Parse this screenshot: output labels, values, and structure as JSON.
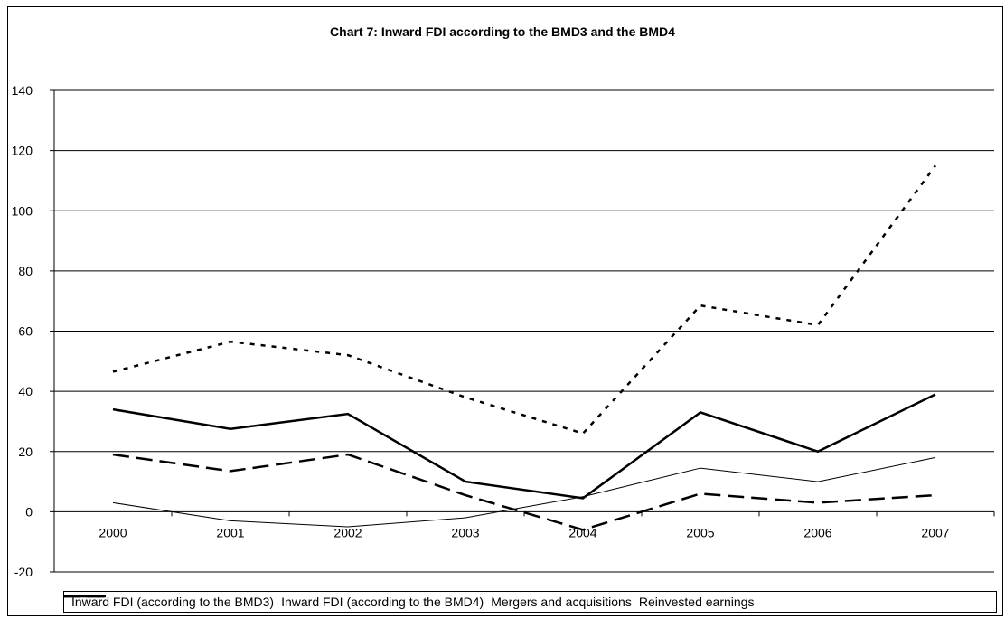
{
  "chart_data": {
    "type": "line",
    "title": "Chart 7: Inward FDI according to the BMD3 and the BMD4",
    "xlabel": "",
    "ylabel": "",
    "categories": [
      "2000",
      "2001",
      "2002",
      "2003",
      "2004",
      "2005",
      "2006",
      "2007"
    ],
    "ylim": [
      -20,
      140
    ],
    "yticks": [
      -20,
      0,
      20,
      40,
      60,
      80,
      100,
      120,
      140
    ],
    "grid": true,
    "legend": "bottom",
    "series": [
      {
        "name": "Inward FDI (according to the BMD3)",
        "values": [
          46.5,
          56.5,
          52,
          38,
          26,
          68.5,
          62,
          115
        ],
        "style": "dotted",
        "width": 2.5,
        "color": "#000000"
      },
      {
        "name": "Inward FDI (according to the BMD4)",
        "values": [
          34,
          27.5,
          32.5,
          10,
          4.5,
          33,
          20,
          39
        ],
        "style": "solid",
        "width": 2.5,
        "color": "#000000"
      },
      {
        "name": "Mergers and acquisitions",
        "values": [
          19,
          13.5,
          19,
          5.5,
          -6,
          6,
          3,
          5.5
        ],
        "style": "dashed",
        "width": 2.5,
        "color": "#000000"
      },
      {
        "name": "Reinvested earnings",
        "values": [
          3,
          -3,
          -5,
          -2,
          5,
          14.5,
          10,
          18
        ],
        "style": "solid",
        "width": 1,
        "color": "#000000"
      }
    ]
  }
}
